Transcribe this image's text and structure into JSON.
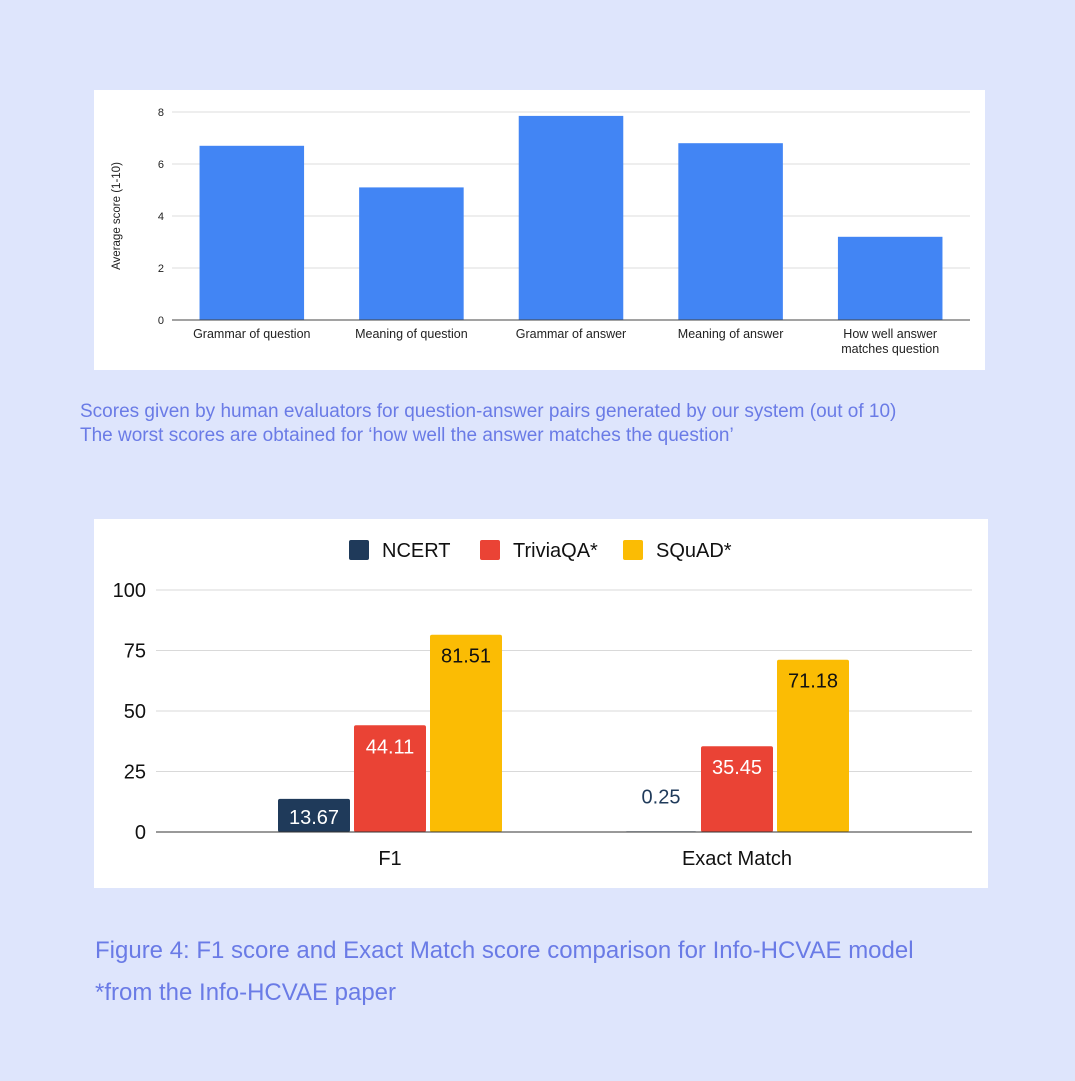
{
  "chart_data": [
    {
      "type": "bar",
      "ylabel": "Average score (1-10)",
      "ylim": [
        0,
        8
      ],
      "yticks": [
        0,
        2,
        4,
        6,
        8
      ],
      "categories": [
        [
          "Grammar of question"
        ],
        [
          "Meaning of question"
        ],
        [
          "Grammar of answer"
        ],
        [
          "Meaning of answer"
        ],
        [
          "How well answer",
          "matches question"
        ]
      ],
      "values": [
        6.7,
        5.1,
        7.85,
        6.8,
        3.2
      ],
      "color": "#4285f4",
      "grid": true
    },
    {
      "type": "bar",
      "ylim": [
        0,
        100
      ],
      "yticks": [
        0,
        25,
        50,
        75,
        100
      ],
      "categories": [
        "F1",
        "Exact Match"
      ],
      "series": [
        {
          "name": "NCERT",
          "values": [
            13.67,
            0.25
          ],
          "labels": [
            "13.67",
            "0.25"
          ],
          "color": "#1f3a5a"
        },
        {
          "name": "TriviaQA*",
          "values": [
            44.11,
            35.45
          ],
          "labels": [
            "44.11",
            "35.45"
          ],
          "color": "#ea4335"
        },
        {
          "name": "SQuAD*",
          "values": [
            81.51,
            71.18
          ],
          "labels": [
            "81.51",
            "71.18"
          ],
          "color": "#fbbc04"
        }
      ],
      "legend_position": "top",
      "grid": true
    }
  ],
  "captions": {
    "chart1_line1": "Scores given by human evaluators for question-answer pairs generated by our system (out of 10)",
    "chart1_line2": "The worst scores are obtained for ‘how well the answer matches the question’",
    "chart2_line1": "Figure 4: F1 score and Exact Match score comparison for Info-HCVAE model",
    "chart2_line2": "*from the Info-HCVAE paper"
  }
}
